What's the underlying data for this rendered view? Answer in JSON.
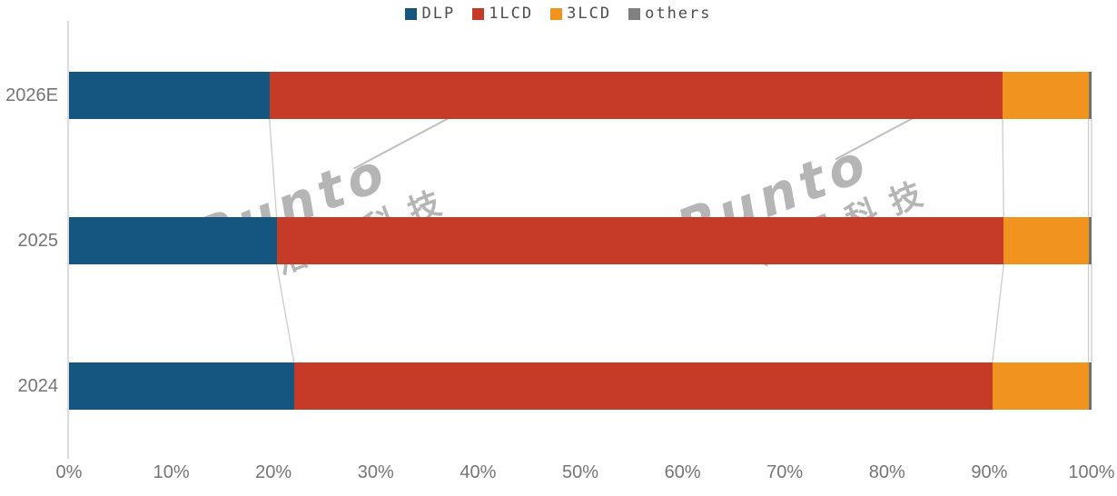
{
  "chart_data": {
    "type": "bar",
    "orientation": "horizontal",
    "stacked": true,
    "title": "",
    "categories": [
      "2026E",
      "2025",
      "2024"
    ],
    "series": [
      {
        "name": "DLP",
        "color": "#14567F",
        "values": [
          19.6,
          20.3,
          22.0
        ]
      },
      {
        "name": "1LCD",
        "color": "#C53B28",
        "values": [
          71.7,
          71.1,
          68.3
        ]
      },
      {
        "name": "3LCD",
        "color": "#F0941F",
        "values": [
          8.4,
          8.3,
          9.4
        ]
      },
      {
        "name": "others",
        "color": "#6F6F6F",
        "values": [
          0.3,
          0.3,
          0.3
        ]
      }
    ],
    "x_ticks": [
      "0%",
      "10%",
      "20%",
      "30%",
      "40%",
      "50%",
      "60%",
      "70%",
      "80%",
      "90%",
      "100%"
    ],
    "xlim": [
      0,
      100
    ],
    "unit": "%",
    "legend_position": "top",
    "legend_labels": [
      "DLP",
      "1LCD",
      "3LCD",
      "others"
    ],
    "grid": false
  },
  "watermark": {
    "brand": "Runto",
    "cjk": "洛图科技"
  },
  "colors": {
    "dlp_blue": "#14567F",
    "lcd1_red": "#C53B28",
    "lcd3_orange": "#F0941F",
    "others_gray": "#6F6F6F",
    "legend_others_gray": "#808080",
    "axis_text": "#757575",
    "legend_text": "#4D4D4D",
    "axis_line": "#DCDCDC",
    "connector_line": "#CCCCCC",
    "watermark_gray": "#A9A9A9"
  }
}
